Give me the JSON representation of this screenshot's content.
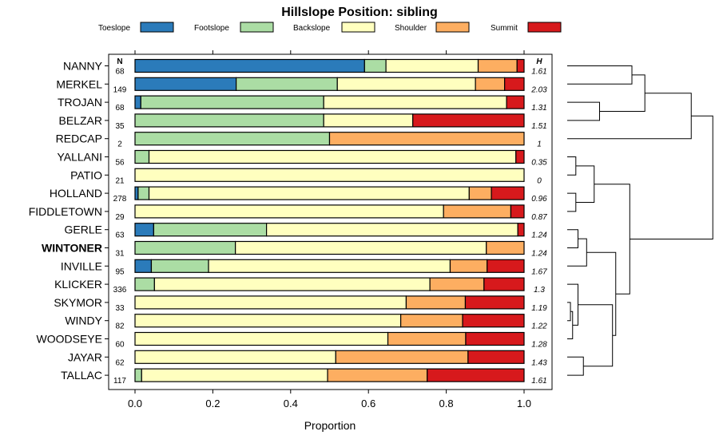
{
  "chart_data": {
    "type": "bar",
    "stacked": true,
    "orientation": "horizontal",
    "title": "Hillslope Position: sibling",
    "xlabel": "Proportion",
    "ylabel": "",
    "xlim": [
      0,
      1
    ],
    "x_ticks": [
      "0.0",
      "0.2",
      "0.4",
      "0.6",
      "0.8",
      "1.0"
    ],
    "legend": {
      "placement": "top",
      "entries": [
        {
          "name": "Toeslope",
          "color": "#2b7bba"
        },
        {
          "name": "Footslope",
          "color": "#abdda4"
        },
        {
          "name": "Backslope",
          "color": "#ffffbf"
        },
        {
          "name": "Shoulder",
          "color": "#fdae61"
        },
        {
          "name": "Summit",
          "color": "#d7191c"
        }
      ]
    },
    "n_header": "N",
    "h_header": "H",
    "highlighted_category": "WINTONER",
    "categories": [
      "NANNY",
      "MERKEL",
      "TROJAN",
      "BELZAR",
      "REDCAP",
      "YALLANI",
      "PATIO",
      "HOLLAND",
      "FIDDLETOWN",
      "GERLE",
      "WINTONER",
      "INVILLE",
      "KLICKER",
      "SKYMOR",
      "WINDY",
      "WOODSEYE",
      "JAYAR",
      "TALLAC"
    ],
    "n": [
      "68",
      "149",
      "68",
      "35",
      "2",
      "56",
      "21",
      "278",
      "29",
      "63",
      "31",
      "95",
      "336",
      "33",
      "82",
      "60",
      "62",
      "117"
    ],
    "h": [
      "1.61",
      "2.03",
      "1.31",
      "1.51",
      "1",
      "0.35",
      "0",
      "0.96",
      "0.87",
      "1.24",
      "1.24",
      "1.67",
      "1.3",
      "1.19",
      "1.22",
      "1.28",
      "1.43",
      "1.61"
    ],
    "series": [
      {
        "name": "Toeslope",
        "values": [
          0.59,
          0.26,
          0.015,
          0,
          0,
          0,
          0,
          0.008,
          0,
          0.048,
          0,
          0.042,
          0,
          0,
          0,
          0,
          0,
          0
        ]
      },
      {
        "name": "Footslope",
        "values": [
          0.055,
          0.26,
          0.47,
          0.485,
          0.5,
          0.036,
          0,
          0.028,
          0,
          0.29,
          0.258,
          0.147,
          0.05,
          0,
          0,
          0,
          0,
          0.017
        ]
      },
      {
        "name": "Backslope",
        "values": [
          0.237,
          0.355,
          0.47,
          0.229,
          0,
          0.943,
          1,
          0.823,
          0.793,
          0.646,
          0.645,
          0.621,
          0.708,
          0.697,
          0.683,
          0.65,
          0.516,
          0.478
        ]
      },
      {
        "name": "Shoulder",
        "values": [
          0.1,
          0.075,
          0,
          0,
          0.5,
          0,
          0,
          0.057,
          0.173,
          0,
          0.097,
          0.095,
          0.139,
          0.152,
          0.159,
          0.2,
          0.34,
          0.256
        ]
      },
      {
        "name": "Summit",
        "values": [
          0.018,
          0.05,
          0.045,
          0.286,
          0,
          0.021,
          0,
          0.084,
          0.034,
          0.016,
          0,
          0.095,
          0.103,
          0.151,
          0.158,
          0.15,
          0.144,
          0.249
        ]
      }
    ],
    "dendrogram": {
      "leaf_order": [
        "NANNY",
        "MERKEL",
        "TROJAN",
        "BELZAR",
        "REDCAP",
        "YALLANI",
        "PATIO",
        "HOLLAND",
        "FIDDLETOWN",
        "GERLE",
        "WINTONER",
        "INVILLE",
        "KLICKER",
        "SKYMOR",
        "WINDY",
        "WOODSEYE",
        "JAYAR",
        "TALLAC"
      ],
      "merges": [
        {
          "left": "MERKEL",
          "right": "NANNY",
          "height": 0.6
        },
        {
          "left": "TROJAN",
          "right": "BELZAR",
          "height": 0.3
        },
        {
          "left": "m0",
          "right": "m1",
          "height": 0.72
        },
        {
          "left": "m2",
          "right": "REDCAP",
          "height": 1.15
        },
        {
          "left": "YALLANI",
          "right": "PATIO",
          "height": 0.08
        },
        {
          "left": "HOLLAND",
          "right": "FIDDLETOWN",
          "height": 0.08
        },
        {
          "left": "m4",
          "right": "m5",
          "height": 0.25
        },
        {
          "left": "GERLE",
          "right": "WINTONER",
          "height": 0.1
        },
        {
          "left": "m7",
          "right": "INVILLE",
          "height": 0.18
        },
        {
          "left": "SKYMOR",
          "right": "WINDY",
          "height": 0.03
        },
        {
          "left": "m9",
          "right": "WOODSEYE",
          "height": 0.05
        },
        {
          "left": "KLICKER",
          "right": "m10",
          "height": 0.1
        },
        {
          "left": "JAYAR",
          "right": "TALLAC",
          "height": 0.15
        },
        {
          "left": "m11",
          "right": "m12",
          "height": 0.42
        },
        {
          "left": "m8",
          "right": "m13",
          "height": 0.45
        },
        {
          "left": "m6",
          "right": "m14",
          "height": 0.58
        },
        {
          "left": "m3",
          "right": "m15",
          "height": 1.35
        }
      ]
    }
  }
}
